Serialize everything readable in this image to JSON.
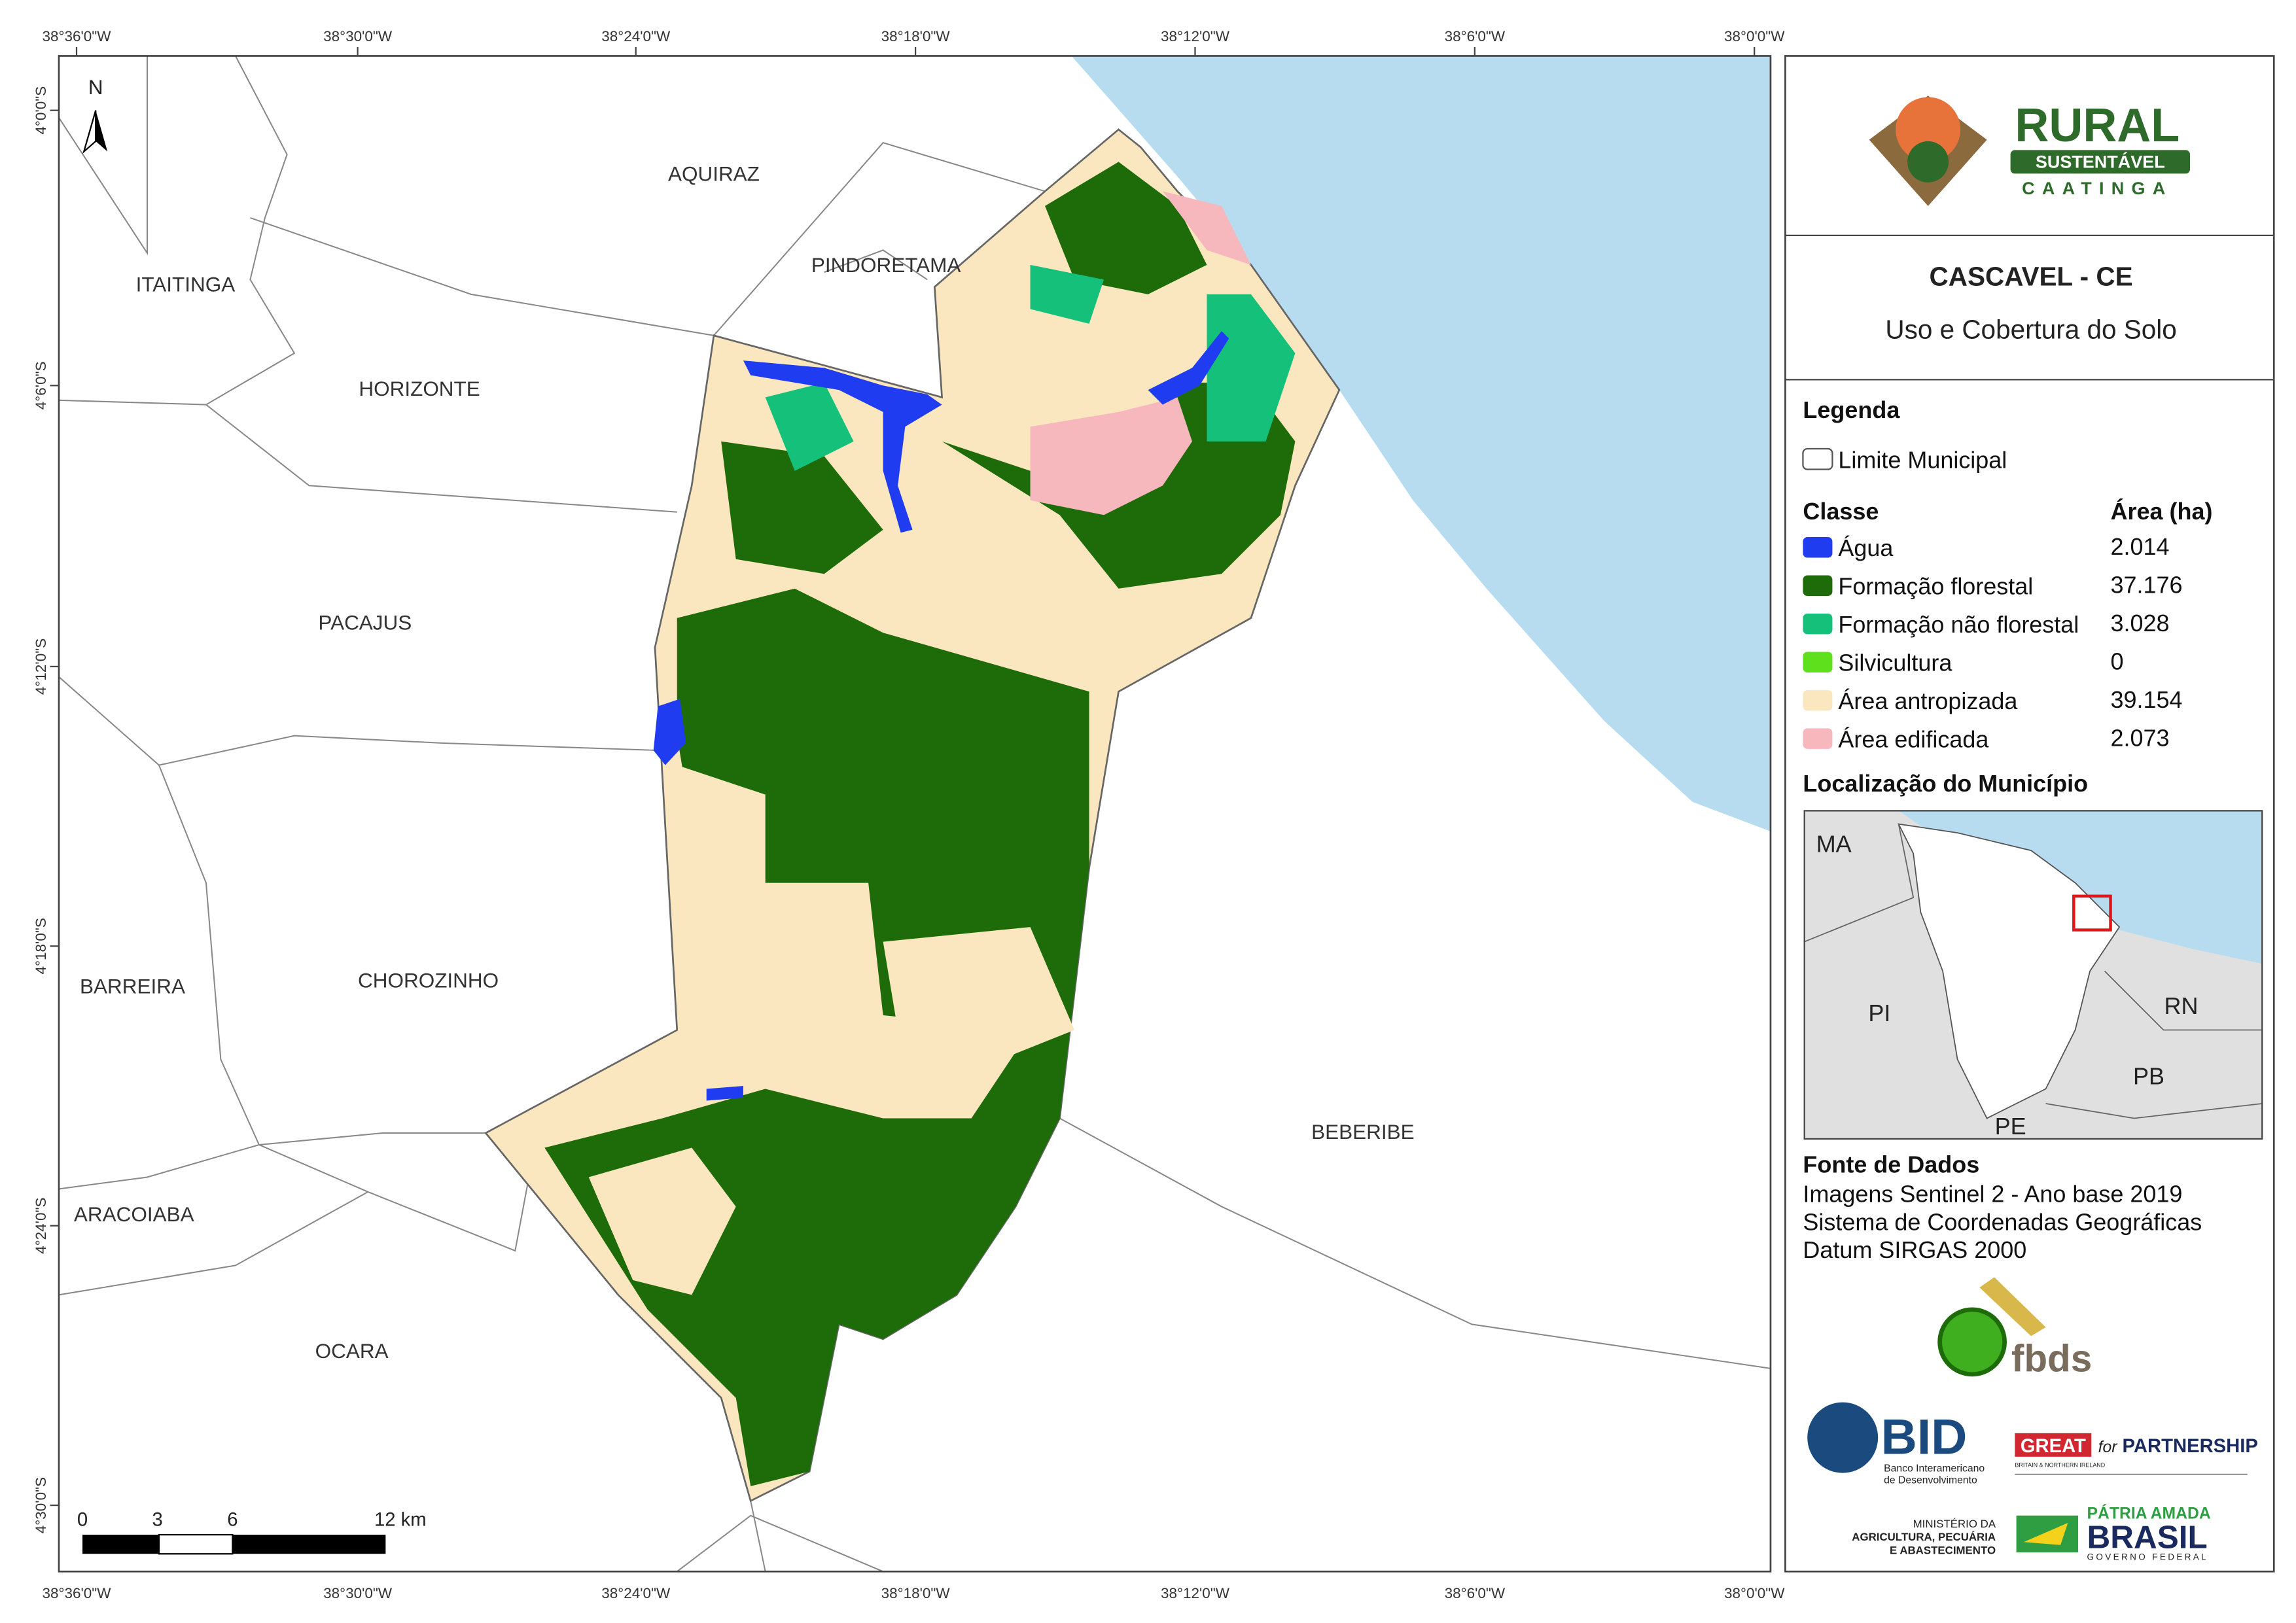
{
  "map": {
    "lon_labels": [
      "38°36'0\"W",
      "38°30'0\"W",
      "38°24'0\"W",
      "38°18'0\"W",
      "38°12'0\"W",
      "38°6'0\"W",
      "38°0'0\"W"
    ],
    "lat_labels": [
      "4°0'0\"S",
      "4°6'0\"S",
      "4°12'0\"S",
      "4°18'0\"S",
      "4°24'0\"S",
      "4°30'0\"S"
    ],
    "municipalities": [
      "AQUIRAZ",
      "PINDORETAMA",
      "ITAITINGA",
      "HORIZONTE",
      "PACAJUS",
      "BARREIRA",
      "CHOROZINHO",
      "BEBERIBE",
      "ARACOIABA",
      "OCARA"
    ],
    "north": "N",
    "scale_labels": [
      "0",
      "3",
      "6",
      "12 km"
    ]
  },
  "panel": {
    "logo": {
      "title": "RURAL",
      "subtitle": "SUSTENTÁVEL",
      "tagline": "CAATINGA"
    },
    "title": "CASCAVEL - CE",
    "subtitle": "Uso e Cobertura do Solo",
    "legend": {
      "heading": "Legenda",
      "boundary": "Limite Municipal",
      "class_header": "Classe",
      "area_header": "Área (ha)",
      "classes": [
        {
          "name": "Água",
          "area": "2.014",
          "color": "#1f3cf0"
        },
        {
          "name": "Formação florestal",
          "area": "37.176",
          "color": "#1e6b0a"
        },
        {
          "name": "Formação não florestal",
          "area": "3.028",
          "color": "#15c07a"
        },
        {
          "name": "Silvicultura",
          "area": "0",
          "color": "#5ee01c"
        },
        {
          "name": "Área antropizada",
          "area": "39.154",
          "color": "#fbe7bf"
        },
        {
          "name": "Área edificada",
          "area": "2.073",
          "color": "#f7b8bd"
        }
      ]
    },
    "location": {
      "heading": "Localização do Município",
      "labels": [
        "MA",
        "PI",
        "RN",
        "PB",
        "PE"
      ]
    },
    "sources": {
      "heading": "Fonte de Dados",
      "lines": [
        "Imagens Sentinel 2 - Ano base 2019",
        "Sistema de Coordenadas Geográficas",
        "Datum SIRGAS 2000"
      ]
    },
    "partners": {
      "fbds": "fbds",
      "bid": "BID",
      "bid_lines": [
        "Banco Interamericano",
        "de Desenvolvimento"
      ],
      "great": "GREAT",
      "great_for": "for",
      "great_partnership": "PARTNERSHIP",
      "great_sub": "BRITAIN & NORTHERN IRELAND",
      "ministry": [
        "MINISTÉRIO DA",
        "AGRICULTURA, PECUÁRIA",
        "E ABASTECIMENTO"
      ],
      "brasil": [
        "PÁTRIA AMADA",
        "BRASIL",
        "GOVERNO FEDERAL"
      ]
    }
  }
}
